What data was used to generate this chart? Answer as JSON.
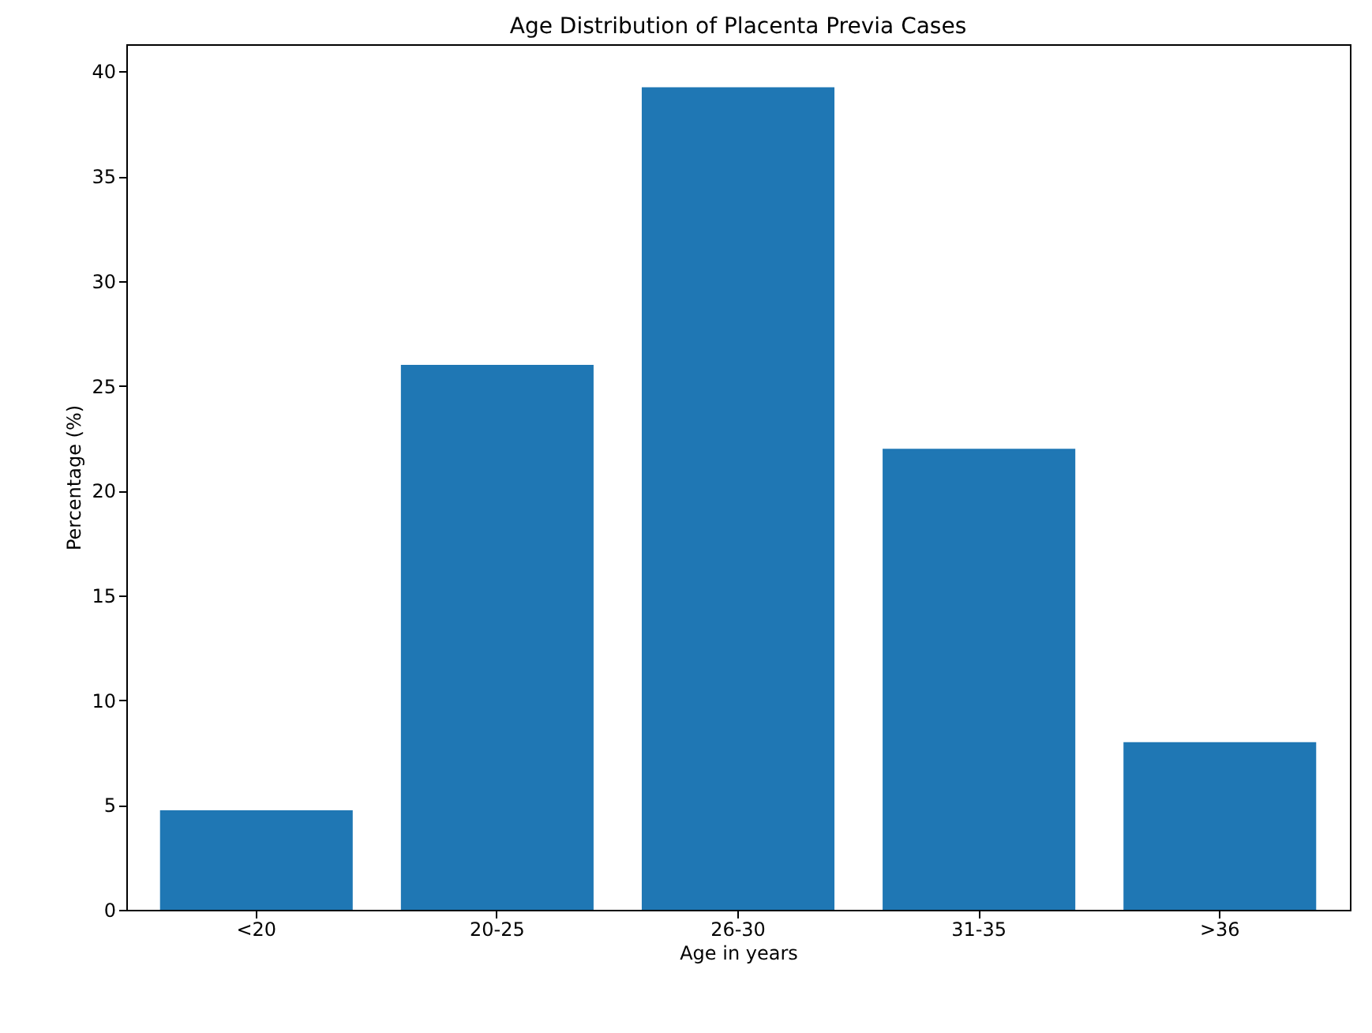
{
  "chart_data": {
    "type": "bar",
    "title": "Age Distribution of Placenta Previa Cases",
    "xlabel": "Age in years",
    "ylabel": "Percentage (%)",
    "categories": [
      "<20",
      "20-25",
      "26-30",
      "31-35",
      ">36"
    ],
    "values": [
      4.75,
      26.0,
      39.25,
      22.0,
      8.0
    ],
    "color": "#1f77b4",
    "ylim": [
      0,
      41.3
    ],
    "yticks": [
      0,
      5,
      10,
      15,
      20,
      25,
      30,
      35,
      40
    ],
    "grid": false
  }
}
